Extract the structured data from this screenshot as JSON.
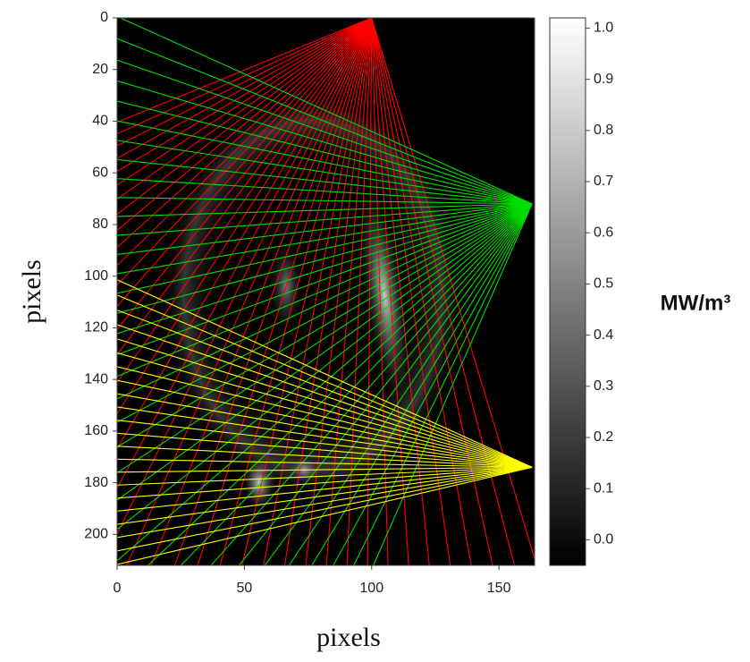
{
  "chart_data": {
    "type": "image",
    "xlabel": "pixels",
    "ylabel": "pixels",
    "xlim": [
      0,
      164
    ],
    "ylim": [
      212,
      0
    ],
    "xticks": [
      0,
      50,
      100,
      150
    ],
    "yticks": [
      0,
      20,
      40,
      60,
      80,
      100,
      120,
      140,
      160,
      180,
      200
    ],
    "colorbar": {
      "label": "MW/m³",
      "clim": [
        -0.05,
        1.02
      ],
      "colors": [
        "#000000",
        "#ffffff"
      ],
      "ticks": [
        {
          "value": 0,
          "label": "0.0"
        },
        0.1,
        0.2,
        0.3,
        0.4,
        0.5,
        0.6,
        0.7,
        0.8,
        0.9,
        {
          "value": 1,
          "label": "1.0"
        }
      ]
    },
    "fans": [
      {
        "source": [
          100,
          0
        ],
        "color": "#ff0000",
        "angles": [
          73,
          158
        ],
        "count": 40
      },
      {
        "source": [
          163,
          72
        ],
        "color": "#00dd00",
        "angles": [
          114,
          204
        ],
        "count": 36
      },
      {
        "source": [
          163,
          174
        ],
        "color": "#ffff00",
        "angles": [
          167,
          204
        ],
        "count": 22
      }
    ]
  }
}
